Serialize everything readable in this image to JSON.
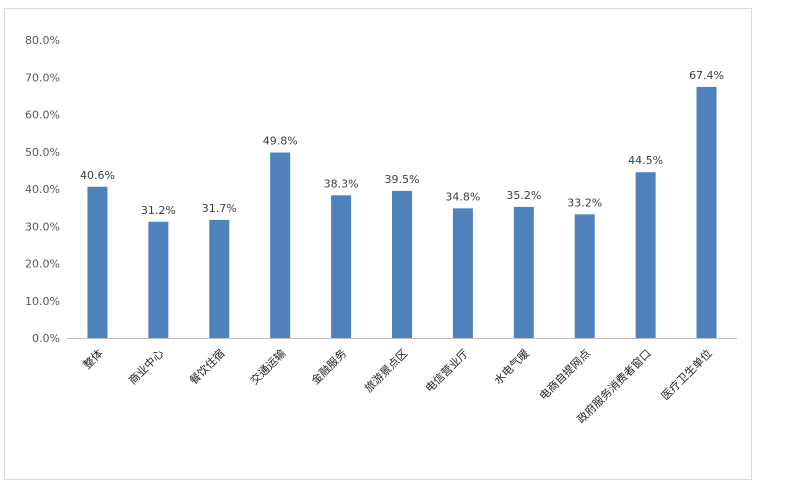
{
  "chart_data": {
    "type": "bar",
    "title": "",
    "xlabel": "",
    "ylabel": "",
    "ylim": [
      0,
      80
    ],
    "ytick_labels": [
      "0.0%",
      "10.0%",
      "20.0%",
      "30.0%",
      "40.0%",
      "50.0%",
      "60.0%",
      "70.0%",
      "80.0%"
    ],
    "grid": false,
    "legend": "none",
    "categories": [
      "整体",
      "商业中心",
      "餐饮住宿",
      "交通运输",
      "金融服务",
      "旅游景点区",
      "电信营业厅",
      "水电气暖",
      "电商自提网点",
      "政府服务消费者窗口",
      "医疗卫生单位"
    ],
    "values": [
      40.6,
      31.2,
      31.7,
      49.8,
      38.3,
      39.5,
      34.8,
      35.2,
      33.2,
      44.5,
      67.4
    ],
    "value_labels": [
      "40.6%",
      "31.2%",
      "31.7%",
      "49.8%",
      "38.3%",
      "39.5%",
      "34.8%",
      "35.2%",
      "33.2%",
      "44.5%",
      "67.4%"
    ],
    "bar_color": "#4f81bd"
  }
}
